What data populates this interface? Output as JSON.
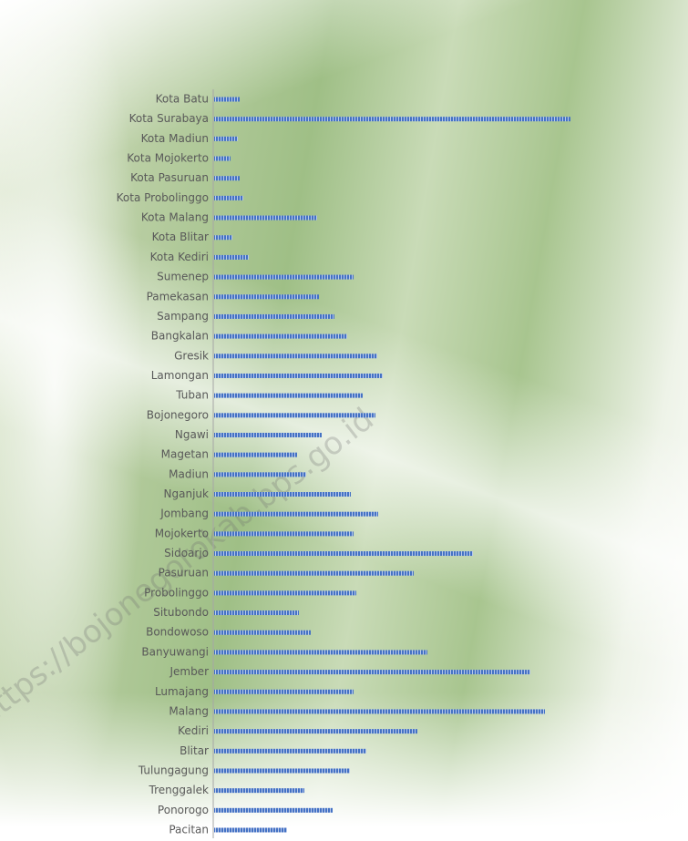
{
  "chart_data": {
    "type": "bar",
    "orientation": "horizontal",
    "watermark": "https://bojonegorokab.bps.go.id",
    "categories": [
      "Kota Batu",
      "Kota Surabaya",
      "Kota Madiun",
      "Kota Mojokerto",
      "Kota Pasuruan",
      "Kota Probolinggo",
      "Kota Malang",
      "Kota Blitar",
      "Kota Kediri",
      "Sumenep",
      "Pamekasan",
      "Sampang",
      "Bangkalan",
      "Gresik",
      "Lamongan",
      "Tuban",
      "Bojonegoro",
      "Ngawi",
      "Magetan",
      "Madiun",
      "Nganjuk",
      "Jombang",
      "Mojokerto",
      "Sidoarjo",
      "Pasuruan",
      "Probolinggo",
      "Situbondo",
      "Bondowoso",
      "Banyuwangi",
      "Jember",
      "Lumajang",
      "Malang",
      "Kediri",
      "Blitar",
      "Tulungagung",
      "Trenggalek",
      "Ponorogo",
      "Pacitan"
    ],
    "values": [
      28,
      391,
      26,
      18,
      28,
      32,
      113,
      20,
      38,
      153,
      115,
      132,
      146,
      179,
      185,
      163,
      177,
      118,
      91,
      101,
      150,
      180,
      153,
      284,
      219,
      156,
      93,
      106,
      234,
      347,
      153,
      363,
      223,
      167,
      149,
      99,
      130,
      80
    ],
    "color": "#4472c4",
    "xlim": [
      0,
      400
    ]
  }
}
